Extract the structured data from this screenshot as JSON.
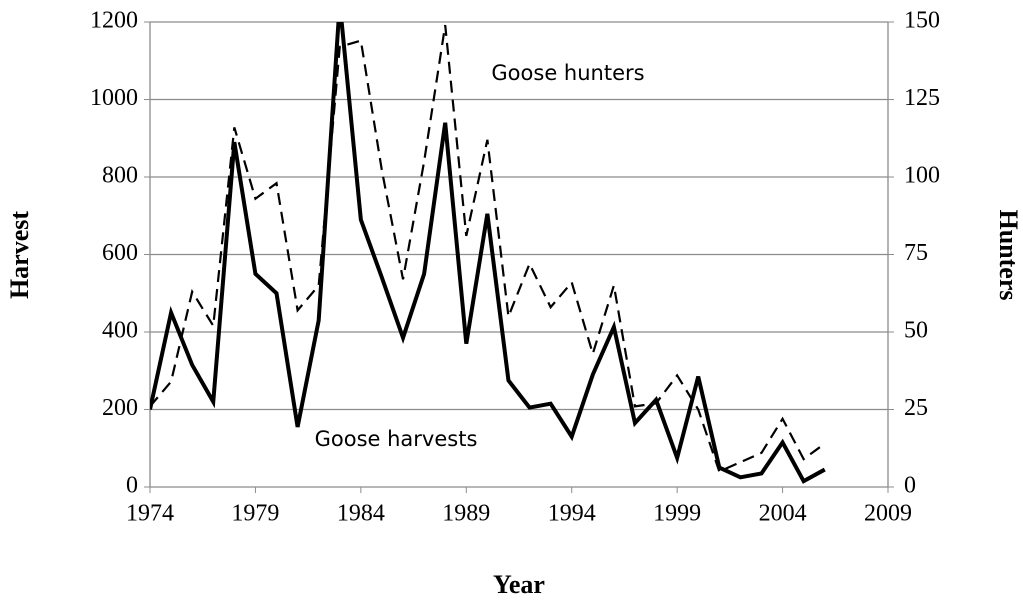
{
  "chart_data": {
    "type": "line",
    "x_label": "Year",
    "y_label": "Harvest",
    "y2_label": "Hunters",
    "annotations": [
      "Goose hunters",
      "Goose harvests"
    ],
    "x": [
      1974,
      1975,
      1976,
      1977,
      1978,
      1979,
      1980,
      1981,
      1982,
      1983,
      1984,
      1985,
      1986,
      1987,
      1988,
      1989,
      1990,
      1991,
      1992,
      1993,
      1994,
      1995,
      1996,
      1997,
      1998,
      1999,
      2000,
      2001,
      2002,
      2003,
      2004,
      2005,
      2006
    ],
    "series": [
      {
        "name": "Goose harvests",
        "color": "#000000",
        "dash": "solid",
        "values": [
          200,
          450,
          315,
          220,
          890,
          550,
          500,
          155,
          430,
          1250,
          690,
          540,
          385,
          550,
          940,
          370,
          705,
          275,
          205,
          215,
          130,
          290,
          413,
          165,
          225,
          75,
          285,
          50,
          25,
          35,
          115,
          15,
          45
        ]
      },
      {
        "name": "Goose hunters",
        "color": "#000000",
        "dash": "dashed",
        "axis": "y2",
        "values": [
          26,
          34,
          63,
          52,
          116,
          93,
          98,
          57,
          65,
          142,
          144,
          102,
          67,
          105,
          149,
          81,
          112,
          55,
          72,
          58,
          66,
          43,
          65,
          26,
          27,
          36,
          25,
          5,
          8,
          11,
          22,
          9,
          14
        ]
      }
    ],
    "xlim": [
      1974,
      2009
    ],
    "xticks": [
      1974,
      1979,
      1984,
      1989,
      1994,
      1999,
      2004,
      2009
    ],
    "ylim": [
      0,
      1200
    ],
    "yticks": [
      0,
      200,
      400,
      600,
      800,
      1000,
      1200
    ],
    "y2lim": [
      0,
      150
    ],
    "y2ticks": [
      0,
      25,
      50,
      75,
      100,
      125,
      150
    ],
    "grid": true
  }
}
